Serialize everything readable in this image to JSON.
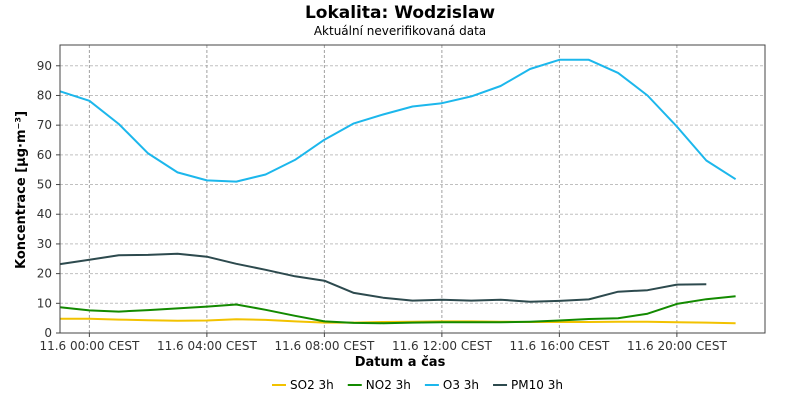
{
  "chart_data": {
    "type": "line",
    "title": "Lokalita: Wodzislaw",
    "subtitle": "Aktuální neverifikovaná data",
    "xlabel": "Datum a čas",
    "ylabel": "Koncentrace [µg·m⁻³]",
    "ylim": [
      0,
      97
    ],
    "yticks": [
      0,
      10,
      20,
      30,
      40,
      50,
      60,
      70,
      80,
      90
    ],
    "xlim": [
      -1,
      23
    ],
    "xticks": [
      {
        "x": 0,
        "label": "11.6 00:00 CEST"
      },
      {
        "x": 4,
        "label": "11.6 04:00 CEST"
      },
      {
        "x": 8,
        "label": "11.6 08:00 CEST"
      },
      {
        "x": 12,
        "label": "11.6 12:00 CEST"
      },
      {
        "x": 16,
        "label": "11.6 16:00 CEST"
      },
      {
        "x": 20,
        "label": "11.6 20:00 CEST"
      }
    ],
    "grid": true,
    "legend_position": "bottom",
    "x": [
      -1,
      0,
      1,
      2,
      3,
      4,
      5,
      6,
      7,
      8,
      9,
      10,
      11,
      12,
      13,
      14,
      15,
      16,
      17,
      18,
      19,
      20,
      21,
      22
    ],
    "series": [
      {
        "name": "SO2 3h",
        "color": "#f2c200",
        "values": [
          4.8,
          4.8,
          4.5,
          4.3,
          4.1,
          4.2,
          4.6,
          4.4,
          3.9,
          3.5,
          3.5,
          3.7,
          3.8,
          3.9,
          3.9,
          3.8,
          3.7,
          3.7,
          3.7,
          3.8,
          3.8,
          3.6,
          3.5,
          3.3
        ]
      },
      {
        "name": "NO2 3h",
        "color": "#138a00",
        "values": [
          8.7,
          7.6,
          7.2,
          7.7,
          8.3,
          8.9,
          9.6,
          7.8,
          5.8,
          3.9,
          3.4,
          3.3,
          3.5,
          3.6,
          3.6,
          3.6,
          3.8,
          4.2,
          4.7,
          5.0,
          6.5,
          9.8,
          11.4,
          12.4
        ]
      },
      {
        "name": "O3 3h",
        "color": "#1cb7ec",
        "values": [
          81.4,
          78.2,
          70.4,
          60.5,
          54.1,
          51.4,
          51.0,
          53.4,
          58.3,
          65.1,
          70.6,
          73.6,
          76.3,
          77.4,
          79.7,
          83.2,
          88.9,
          92.0,
          92.0,
          87.6,
          80.0,
          69.5,
          58.1,
          51.8
        ]
      },
      {
        "name": "PM10 3h",
        "color": "#2d4a4e",
        "values": [
          23.2,
          24.7,
          26.2,
          26.3,
          26.7,
          25.7,
          23.3,
          21.3,
          19.1,
          17.6,
          13.5,
          11.9,
          10.9,
          11.2,
          10.9,
          11.2,
          10.5,
          10.8,
          11.3,
          13.9,
          14.4,
          16.3,
          16.4,
          null
        ]
      }
    ]
  }
}
